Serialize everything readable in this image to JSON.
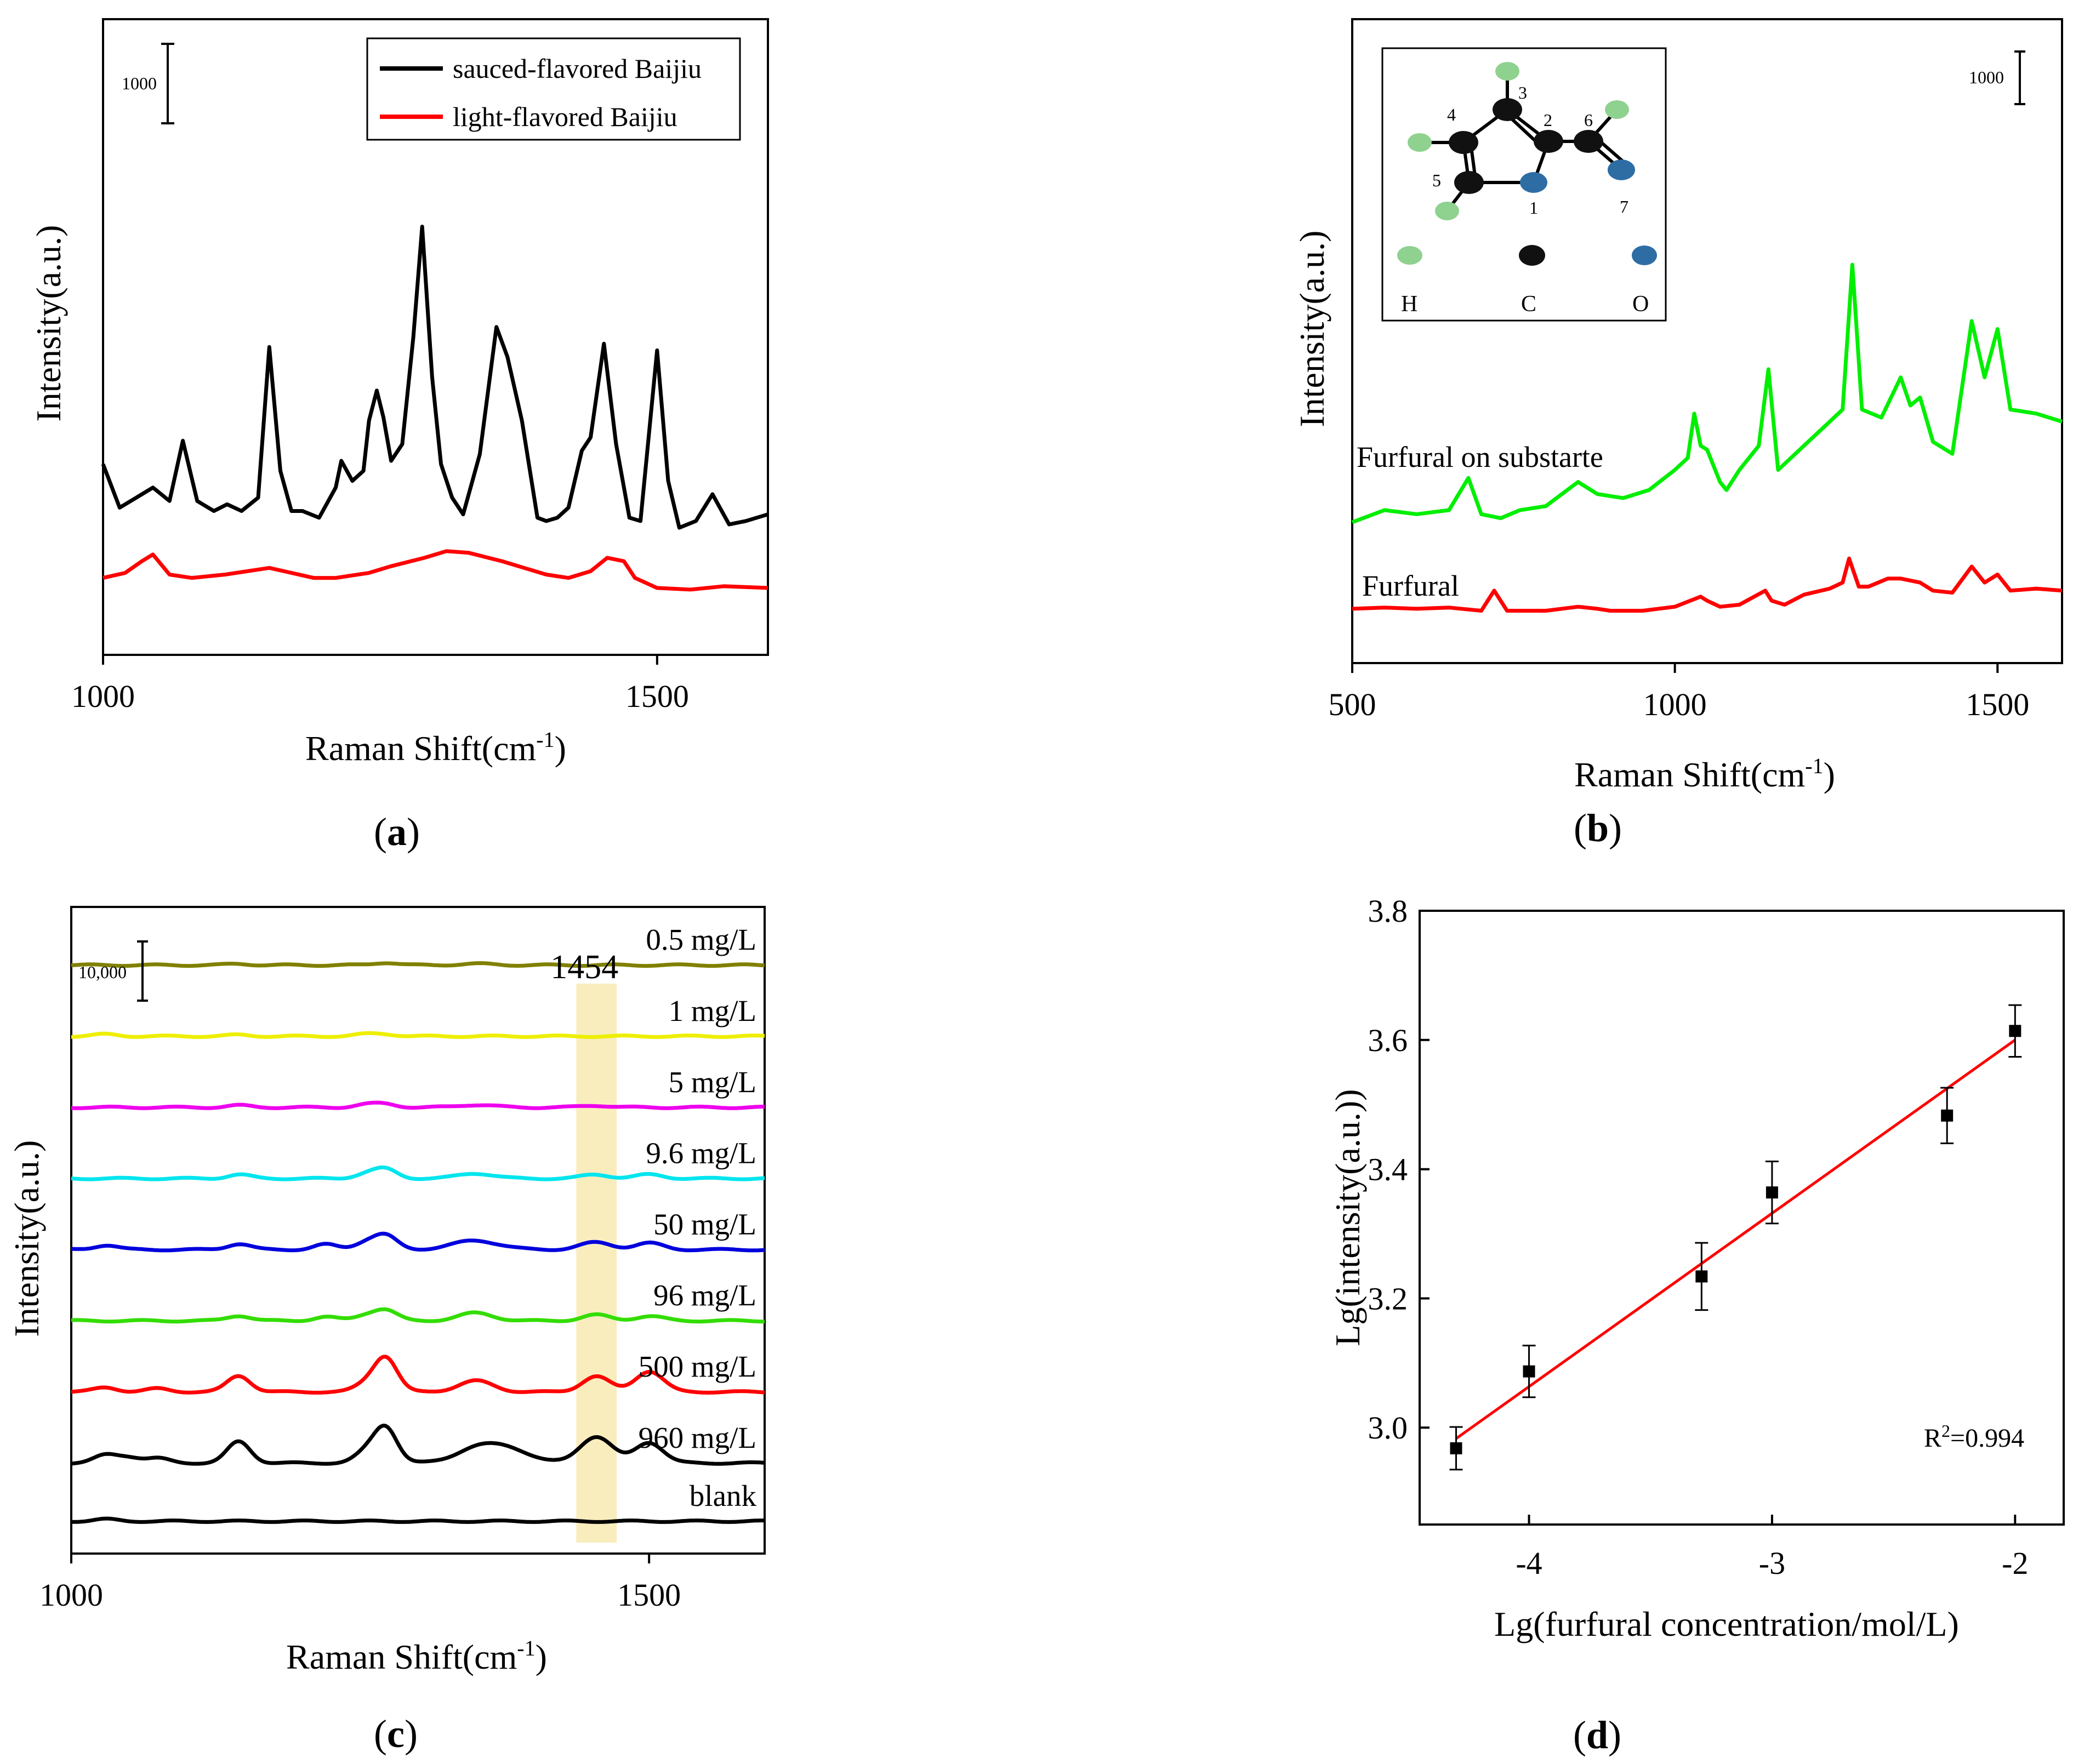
{
  "chart_data": [
    {
      "panel": "a",
      "type": "line",
      "panel_label": "a",
      "xlabel": "Raman Shift(cm",
      "xlabel_sup": "-1",
      "xlabel_tail": ")",
      "ylabel": "Intensity(a.u.)",
      "xlim": [
        1000,
        1600
      ],
      "ylim": [
        0,
        19000
      ],
      "x_ticks": [
        1000,
        1500
      ],
      "scale_bar": {
        "label": "1000",
        "value": 1000
      },
      "legend": [
        {
          "label": "sauced-flavored Baijiu",
          "color": "#000000"
        },
        {
          "label": "light-flavored Baijiu",
          "color": "#ff0000"
        }
      ],
      "series": [
        {
          "name": "sauced-flavored Baijiu",
          "color": "#000000",
          "x": [
            1000,
            1015,
            1030,
            1045,
            1060,
            1072,
            1085,
            1100,
            1112,
            1125,
            1140,
            1150,
            1160,
            1170,
            1180,
            1195,
            1210,
            1215,
            1225,
            1235,
            1240,
            1247,
            1253,
            1260,
            1270,
            1280,
            1288,
            1297,
            1305,
            1315,
            1325,
            1340,
            1355,
            1365,
            1378,
            1392,
            1400,
            1410,
            1420,
            1432,
            1440,
            1452,
            1463,
            1475,
            1485,
            1500,
            1510,
            1520,
            1535,
            1550,
            1565,
            1580,
            1600
          ],
          "values": [
            5700,
            4400,
            4700,
            5000,
            4600,
            6400,
            4600,
            4300,
            4500,
            4300,
            4700,
            9200,
            5500,
            4300,
            4300,
            4100,
            5000,
            5800,
            5200,
            5500,
            7000,
            7900,
            7100,
            5800,
            6300,
            9500,
            12800,
            8300,
            5700,
            4700,
            4200,
            6000,
            9800,
            8900,
            7000,
            4100,
            4000,
            4100,
            4400,
            6100,
            6500,
            9300,
            6300,
            4100,
            4000,
            9100,
            5200,
            3800,
            4000,
            4800,
            3900,
            4000,
            4200
          ]
        },
        {
          "name": "light-flavored Baijiu",
          "color": "#ff0000",
          "x": [
            1000,
            1020,
            1035,
            1045,
            1060,
            1080,
            1110,
            1150,
            1190,
            1210,
            1240,
            1260,
            1290,
            1310,
            1330,
            1360,
            1380,
            1400,
            1420,
            1440,
            1455,
            1470,
            1480,
            1500,
            1530,
            1560,
            1600
          ],
          "values": [
            2300,
            2450,
            2800,
            3000,
            2400,
            2300,
            2400,
            2600,
            2300,
            2300,
            2450,
            2650,
            2900,
            3100,
            3050,
            2800,
            2600,
            2400,
            2300,
            2500,
            2900,
            2800,
            2300,
            2000,
            1950,
            2050,
            2000
          ]
        }
      ]
    },
    {
      "panel": "b",
      "type": "line",
      "panel_label": "b",
      "xlabel": "Raman Shift(cm",
      "xlabel_sup": "-1",
      "xlabel_tail": ")",
      "ylabel": "Intensity(a.u.)",
      "xlim": [
        500,
        1600
      ],
      "ylim": [
        0,
        16000
      ],
      "x_ticks": [
        500,
        1000,
        1500
      ],
      "scale_bar": {
        "label": "1000",
        "value": 1000
      },
      "series_labels": [
        "Furfural on substarte",
        "Furfural"
      ],
      "inset": {
        "atom_numbers": [
          "3",
          "4",
          "2",
          "6",
          "5",
          "1",
          "7"
        ],
        "legend": [
          "H",
          "C",
          "O"
        ]
      },
      "series": [
        {
          "name": "Furfural on substarte",
          "color": "#00ee00",
          "x": [
            500,
            550,
            600,
            650,
            680,
            700,
            730,
            760,
            800,
            850,
            880,
            920,
            960,
            1000,
            1020,
            1030,
            1040,
            1050,
            1070,
            1080,
            1100,
            1130,
            1145,
            1160,
            1200,
            1240,
            1260,
            1275,
            1290,
            1320,
            1350,
            1365,
            1380,
            1400,
            1430,
            1460,
            1480,
            1500,
            1520,
            1560,
            1600
          ],
          "values": [
            3500,
            3800,
            3700,
            3800,
            4600,
            3700,
            3600,
            3800,
            3900,
            4500,
            4200,
            4100,
            4300,
            4800,
            5100,
            6200,
            5400,
            5300,
            4500,
            4300,
            4800,
            5400,
            7300,
            4800,
            5400,
            6000,
            6300,
            9900,
            6300,
            6100,
            7100,
            6400,
            6600,
            5500,
            5200,
            8500,
            7100,
            8300,
            6300,
            6200,
            6000
          ]
        },
        {
          "name": "Furfural",
          "color": "#ff0000",
          "x": [
            500,
            550,
            600,
            650,
            700,
            720,
            740,
            800,
            850,
            880,
            900,
            950,
            1000,
            1040,
            1050,
            1070,
            1100,
            1140,
            1150,
            1170,
            1200,
            1240,
            1260,
            1270,
            1285,
            1300,
            1330,
            1350,
            1380,
            1400,
            1430,
            1460,
            1480,
            1500,
            1520,
            1560,
            1600
          ],
          "values": [
            1350,
            1380,
            1350,
            1380,
            1300,
            1800,
            1300,
            1300,
            1400,
            1350,
            1300,
            1300,
            1400,
            1650,
            1550,
            1400,
            1450,
            1800,
            1550,
            1450,
            1700,
            1850,
            2000,
            2600,
            1900,
            1900,
            2100,
            2100,
            2000,
            1800,
            1750,
            2400,
            2000,
            2200,
            1800,
            1850,
            1800
          ]
        }
      ]
    },
    {
      "panel": "c",
      "type": "line",
      "panel_label": "c",
      "xlabel": "Raman Shift(cm",
      "xlabel_sup": "-1",
      "xlabel_tail": ")",
      "ylabel": "Intensity(a.u.)",
      "xlim": [
        1000,
        1600
      ],
      "ylim": [
        0,
        100000
      ],
      "x_ticks": [
        1000,
        1500
      ],
      "scale_bar": {
        "label": "10,000",
        "value": 10000
      },
      "highlight": {
        "label": "1454",
        "x_from": 1437,
        "x_to": 1472,
        "color": "#f7e7a8"
      },
      "series": [
        {
          "name": "blank",
          "label": "blank",
          "color": "#000000",
          "offset": 5000,
          "peaks": [
            [
              1030,
              10,
              300
            ]
          ]
        },
        {
          "name": "960 mg/L",
          "label": "960 mg/L",
          "color": "#000000",
          "offset": 14000,
          "peaks": [
            [
              1030,
              10,
              1200
            ],
            [
              1050,
              10,
              900
            ],
            [
              1075,
              10,
              700
            ],
            [
              1145,
              10,
              3300
            ],
            [
              1255,
              10,
              1500
            ],
            [
              1272,
              10,
              5500
            ],
            [
              1350,
              18,
              2200
            ],
            [
              1380,
              18,
              2000
            ],
            [
              1454,
              14,
              4100
            ],
            [
              1500,
              12,
              3200
            ]
          ]
        },
        {
          "name": "500 mg/L",
          "label": "500 mg/L",
          "color": "#ff0000",
          "offset": 25000,
          "peaks": [
            [
              1030,
              10,
              700
            ],
            [
              1075,
              10,
              500
            ],
            [
              1145,
              10,
              2500
            ],
            [
              1255,
              10,
              1100
            ],
            [
              1272,
              10,
              5300
            ],
            [
              1350,
              15,
              1700
            ],
            [
              1454,
              12,
              2400
            ],
            [
              1500,
              12,
              3200
            ]
          ]
        },
        {
          "name": "96 mg/L",
          "label": "96 mg/L",
          "color": "#33dd00",
          "offset": 36000,
          "peaks": [
            [
              1145,
              10,
              800
            ],
            [
              1220,
              10,
              600
            ],
            [
              1255,
              10,
              800
            ],
            [
              1272,
              10,
              1600
            ],
            [
              1350,
              15,
              1200
            ],
            [
              1454,
              12,
              900
            ],
            [
              1500,
              12,
              700
            ]
          ]
        },
        {
          "name": "50 mg/L",
          "label": "50 mg/L",
          "color": "#0000dd",
          "offset": 47000,
          "peaks": [
            [
              1030,
              10,
              700
            ],
            [
              1145,
              10,
              900
            ],
            [
              1220,
              10,
              800
            ],
            [
              1255,
              10,
              1100
            ],
            [
              1272,
              10,
              2100
            ],
            [
              1350,
              20,
              1400
            ],
            [
              1454,
              14,
              1100
            ],
            [
              1500,
              12,
              1000
            ]
          ]
        },
        {
          "name": "9.6 mg/L",
          "label": "9.6 mg/L",
          "color": "#00e5ee",
          "offset": 58000,
          "peaks": [
            [
              1145,
              10,
              600
            ],
            [
              1255,
              10,
              700
            ],
            [
              1272,
              10,
              1400
            ],
            [
              1350,
              15,
              800
            ],
            [
              1454,
              12,
              600
            ],
            [
              1500,
              12,
              600
            ]
          ]
        },
        {
          "name": "5 mg/L",
          "label": "5 mg/L",
          "color": "#ee00ee",
          "offset": 69000,
          "peaks": [
            [
              1145,
              10,
              300
            ],
            [
              1255,
              10,
              400
            ],
            [
              1272,
              10,
              500
            ],
            [
              1350,
              15,
              400
            ],
            [
              1454,
              12,
              300
            ]
          ]
        },
        {
          "name": "1 mg/L",
          "label": "1 mg/L",
          "color": "#eeee00",
          "offset": 80000,
          "peaks": [
            [
              1030,
              10,
              300
            ],
            [
              1145,
              10,
              200
            ],
            [
              1255,
              10,
              300
            ],
            [
              1272,
              10,
              300
            ]
          ]
        },
        {
          "name": "0.5 mg/L",
          "label": "0.5 mg/L",
          "color": "#808000",
          "offset": 91000,
          "peaks": [
            [
              1145,
              10,
              200
            ],
            [
              1272,
              10,
              400
            ],
            [
              1350,
              15,
              200
            ]
          ]
        }
      ]
    },
    {
      "panel": "d",
      "type": "scatter",
      "panel_label": "d",
      "xlabel": "Lg(furfural concentration/mol/L)",
      "ylabel": "Lg(intensity(a.u.))",
      "xlim": [
        -4.45,
        -1.8
      ],
      "ylim": [
        2.85,
        3.8
      ],
      "x_ticks": [
        -4,
        -3,
        -2
      ],
      "y_ticks": [
        3.0,
        3.2,
        3.4,
        3.6,
        3.8
      ],
      "x_tick_labels": [
        "-4",
        "-3",
        "-2"
      ],
      "y_tick_labels": [
        "3.0",
        "3.2",
        "3.4",
        "3.6",
        "3.8"
      ],
      "annotation": "R",
      "annotation_sup": "2",
      "annotation_tail": "=0.994",
      "points": [
        {
          "x": -4.3,
          "y": 2.968,
          "err": 0.033
        },
        {
          "x": -4.0,
          "y": 3.087,
          "err": 0.04
        },
        {
          "x": -3.29,
          "y": 3.234,
          "err": 0.052
        },
        {
          "x": -3.0,
          "y": 3.364,
          "err": 0.048
        },
        {
          "x": -2.28,
          "y": 3.483,
          "err": 0.043
        },
        {
          "x": -2.0,
          "y": 3.614,
          "err": 0.04
        }
      ],
      "fit": {
        "x": [
          -4.3,
          -2.0
        ],
        "y": [
          2.983,
          3.6
        ],
        "color": "#ff0000"
      }
    }
  ]
}
